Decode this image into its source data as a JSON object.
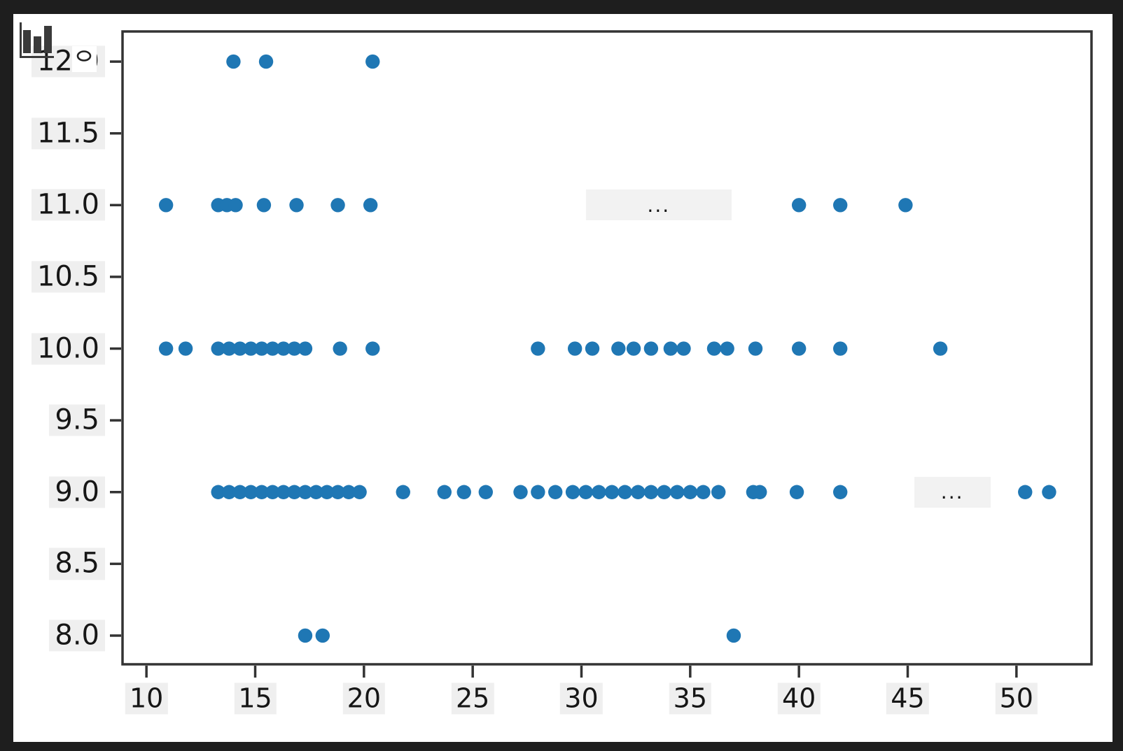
{
  "window": {
    "background_color": "#1e1e1e",
    "figure_background_color": "#ffffff"
  },
  "overlay": {
    "corner_icon": "bar-chart-icon",
    "corner_icon_color": "#3a3a3a",
    "marker_box_glyph": "o"
  },
  "chart_data": {
    "type": "scatter",
    "title": "",
    "xlabel": "",
    "ylabel": "",
    "grid": false,
    "legend": "none",
    "marker_color": "#1f77b4",
    "axis_color": "#333333",
    "tick_label_background": "#efefef",
    "tick_label_color": "#161616",
    "xlim": [
      8.9,
      53.45
    ],
    "ylim": [
      7.8,
      12.21
    ],
    "x_ticks": [
      10,
      15,
      20,
      25,
      30,
      35,
      40,
      45,
      50
    ],
    "x_tick_labels": [
      "10",
      "15",
      "20",
      "25",
      "30",
      "35",
      "40",
      "45",
      "50"
    ],
    "y_ticks": [
      8,
      8.5,
      9,
      9.5,
      10,
      10.5,
      11,
      11.5,
      12
    ],
    "y_tick_labels": [
      "8.0",
      "8.5",
      "9.0",
      "9.5",
      "10.0",
      "10.5",
      "11.0",
      "11.5",
      "12.0"
    ],
    "rows": [
      {
        "y": 12,
        "x": [
          14.0,
          15.5,
          20.4
        ]
      },
      {
        "y": 11,
        "x": [
          10.9,
          13.3,
          13.7,
          14.1,
          15.4,
          16.9,
          18.8,
          20.3,
          40.0,
          41.9,
          44.9
        ]
      },
      {
        "y": 10,
        "x": [
          10.9,
          11.8,
          13.3,
          13.8,
          14.3,
          14.8,
          15.3,
          15.8,
          16.3,
          16.8,
          17.3,
          18.9,
          20.4,
          28.0,
          29.7,
          30.5,
          31.7,
          32.4,
          33.2,
          34.1,
          34.7,
          36.1,
          36.7,
          38.0,
          40.0,
          41.9,
          46.5
        ]
      },
      {
        "y": 9,
        "x": [
          13.3,
          13.8,
          14.3,
          14.8,
          15.3,
          15.8,
          16.3,
          16.8,
          17.3,
          17.8,
          18.3,
          18.8,
          19.3,
          19.8,
          21.8,
          23.7,
          24.6,
          25.6,
          27.2,
          28.0,
          28.8,
          29.6,
          30.2,
          30.8,
          31.4,
          32.0,
          32.6,
          33.2,
          33.8,
          34.4,
          35.0,
          35.6,
          36.3,
          37.9,
          38.2,
          39.9,
          41.9,
          50.4,
          51.5
        ]
      },
      {
        "y": 8,
        "x": [
          17.3,
          18.1,
          37.0
        ]
      }
    ],
    "annotations": [
      {
        "label": "...",
        "y": 11,
        "x_from": 30.2,
        "x_to": 36.9
      },
      {
        "label": "...",
        "y": 9,
        "x_from": 45.3,
        "x_to": 48.8
      }
    ]
  }
}
